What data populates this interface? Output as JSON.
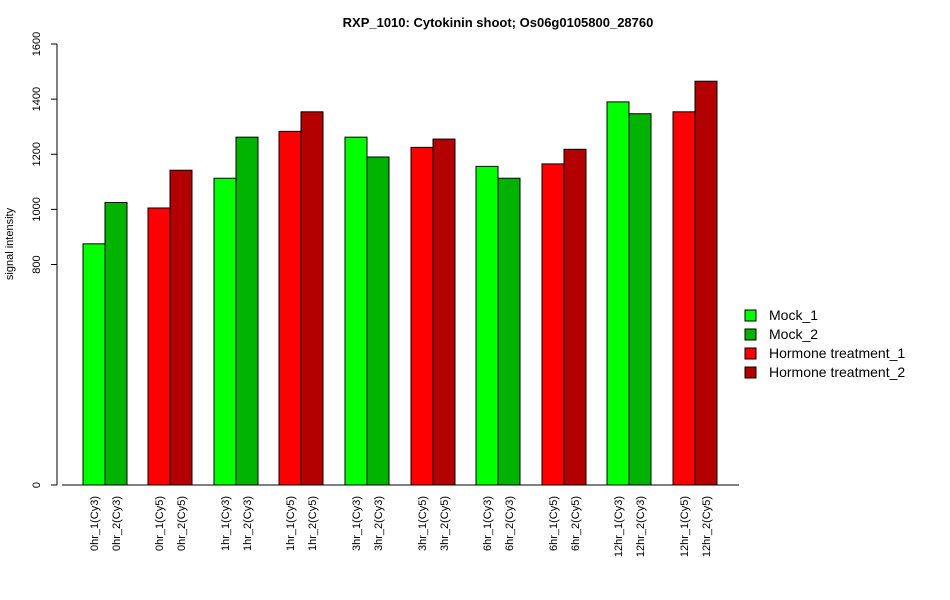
{
  "chart_data": {
    "type": "bar",
    "title": "RXP_1010: Cytokinin shoot; Os06g0105800_28760",
    "xlabel": "",
    "ylabel": "signal intensity",
    "ylim": [
      0,
      1600
    ],
    "yticks": [
      0,
      800,
      1000,
      1200,
      1400,
      1600
    ],
    "categories": [
      "0hr_1(Cy3)",
      "0hr_2(Cy3)",
      "0hr_1(Cy5)",
      "0hr_2(Cy5)",
      "1hr_1(Cy3)",
      "1hr_2(Cy3)",
      "1hr_1(Cy5)",
      "1hr_2(Cy5)",
      "3hr_1(Cy3)",
      "3hr_2(Cy3)",
      "3hr_1(Cy5)",
      "3hr_2(Cy5)",
      "6hr_1(Cy3)",
      "6hr_2(Cy3)",
      "6hr_1(Cy5)",
      "6hr_2(Cy5)",
      "12hr_1(Cy3)",
      "12hr_2(Cy3)",
      "12hr_1(Cy5)",
      "12hr_2(Cy5)"
    ],
    "values": [
      875,
      1025,
      1005,
      1142,
      1113,
      1262,
      1283,
      1354,
      1262,
      1190,
      1225,
      1255,
      1156,
      1113,
      1165,
      1218,
      1390,
      1347,
      1354,
      1465
    ],
    "series_index": [
      0,
      1,
      2,
      3,
      0,
      1,
      2,
      3,
      0,
      1,
      2,
      3,
      0,
      1,
      2,
      3,
      0,
      1,
      2,
      3
    ],
    "series": [
      {
        "name": "Mock_1",
        "color": "#00ff00"
      },
      {
        "name": "Mock_2",
        "color": "#00b300"
      },
      {
        "name": "Hormone treatment_1",
        "color": "#ff0000"
      },
      {
        "name": "Hormone treatment_2",
        "color": "#b30000"
      }
    ],
    "legend_position": "right",
    "grid": false
  }
}
